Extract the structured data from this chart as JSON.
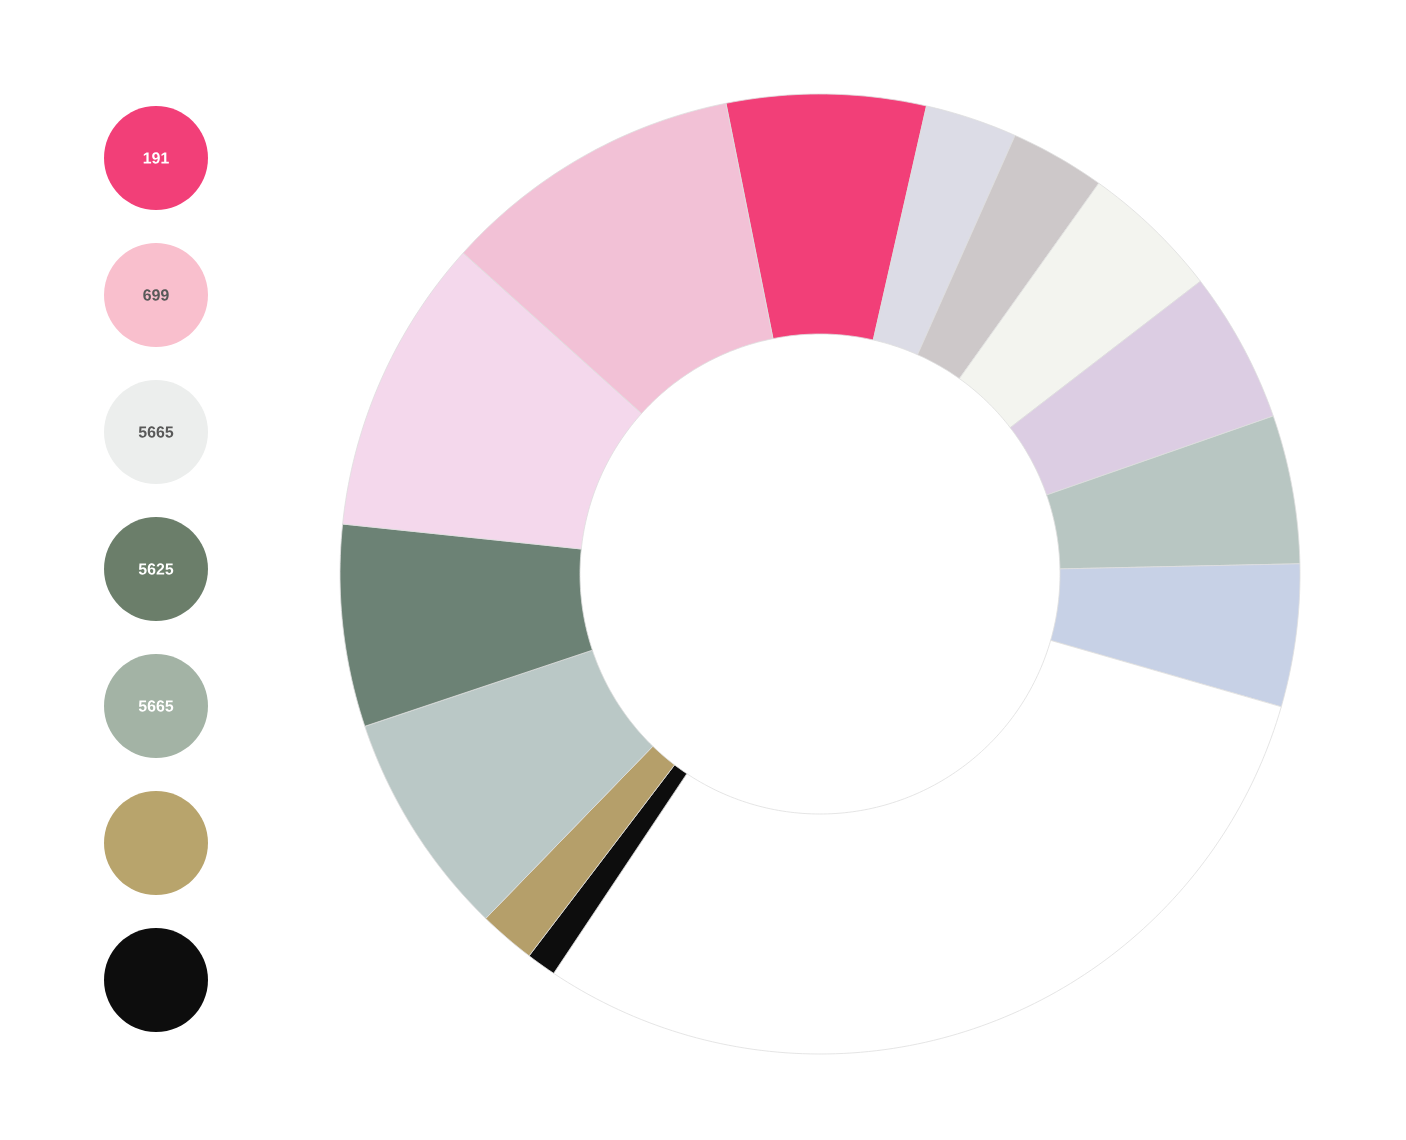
{
  "chart_data": [
    {
      "type": "donut",
      "categories": [
        null,
        null,
        null,
        null,
        null,
        null,
        null,
        null,
        null,
        null,
        null,
        null,
        null,
        null
      ],
      "values": [
        6.7,
        3.1,
        3.2,
        4.7,
        5.1,
        5.0,
        4.8,
        29.9,
        1.0,
        1.9,
        7.6,
        6.8,
        10.0,
        10.2
      ],
      "colors": [
        "#f23f78",
        "#dcdce6",
        "#cdc8c9",
        "#f3f4ef",
        "#dccde3",
        "#b8c6c2",
        "#c7d1e6",
        "#ffffff",
        "#0d0d0d",
        "#b59f6a",
        "#bac8c6",
        "#6c8275",
        "#f4d8ec",
        "#f2c1d6"
      ]
    },
    {
      "type": "other",
      "categories": [
        "191",
        "699",
        "5665",
        "5625",
        "5665",
        null,
        null
      ],
      "colors": [
        "#f23f78",
        "#f9bfcd",
        "#eceeed",
        "#6b7e6a",
        "#a3b3a5",
        "#b8a46c",
        "#0d0d0d"
      ]
    }
  ]
}
